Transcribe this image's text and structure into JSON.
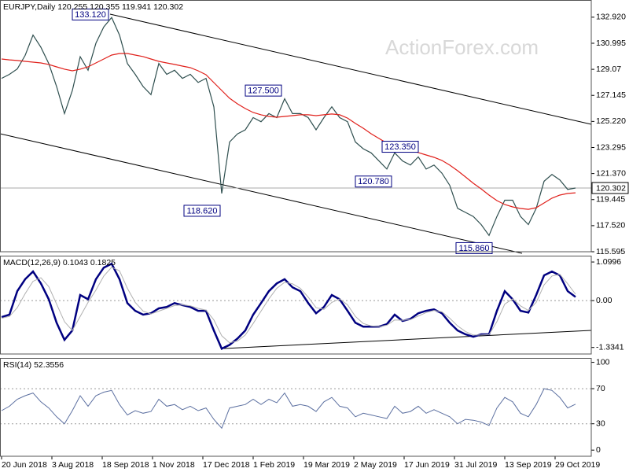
{
  "chart_data": [
    {
      "type": "line",
      "title": "EURJPY,Daily  120.255 120.355 119.941 120.302",
      "watermark": "ActionForex.com",
      "x": [
        0,
        5,
        10,
        15,
        20,
        25,
        30,
        35,
        40,
        45,
        50,
        55,
        60,
        65,
        70,
        75,
        80,
        85,
        90,
        95,
        100,
        105,
        110,
        115,
        120,
        125,
        130,
        135,
        140,
        145,
        150,
        155,
        160,
        165,
        170,
        175,
        180,
        185,
        190,
        195,
        200,
        205,
        210,
        215,
        220,
        225,
        230,
        235,
        240,
        245,
        250,
        255,
        260,
        265,
        270,
        275,
        280,
        285,
        290,
        295,
        300,
        305,
        310,
        315,
        320,
        325,
        330,
        335,
        340,
        345,
        350,
        355,
        360,
        365
      ],
      "xlim": [
        -1,
        375
      ],
      "ylim": [
        115.595,
        134.19
      ],
      "yticks": [
        {
          "value": 132.92,
          "label": "132.920"
        },
        130.995,
        129.07,
        127.145,
        {
          "value": 125.22,
          "label": "125.220"
        },
        123.295,
        {
          "value": 121.37,
          "label": "121.370"
        },
        119.445,
        {
          "value": 117.52,
          "label": "117.520"
        },
        115.595
      ],
      "series": [
        {
          "name": "Close",
          "color": "#2f4f4f",
          "values": [
            128.4,
            128.7,
            129.1,
            130.1,
            131.6,
            130.7,
            129.5,
            127.8,
            125.8,
            127.5,
            130.0,
            129.0,
            131.0,
            132.2,
            132.9,
            131.6,
            129.5,
            128.7,
            127.8,
            127.2,
            129.5,
            128.7,
            129.0,
            128.4,
            128.7,
            128.1,
            128.4,
            126.3,
            119.9,
            123.7,
            124.3,
            124.6,
            125.5,
            125.2,
            125.8,
            125.5,
            126.9,
            125.8,
            125.8,
            125.5,
            124.6,
            125.5,
            126.3,
            125.5,
            125.2,
            123.7,
            123.2,
            122.9,
            122.3,
            121.7,
            122.9,
            122.3,
            122.0,
            122.6,
            121.7,
            122.0,
            121.4,
            120.5,
            118.8,
            118.5,
            118.2,
            117.6,
            116.8,
            118.2,
            119.4,
            119.4,
            118.2,
            117.6,
            118.8,
            120.8,
            121.3,
            120.9,
            120.2,
            120.302
          ]
        },
        {
          "name": "MA",
          "color": "#e0201b",
          "values": [
            129.83,
            129.77,
            129.72,
            129.66,
            129.6,
            129.54,
            129.43,
            129.25,
            129.08,
            128.96,
            129.08,
            129.25,
            129.54,
            129.83,
            130.12,
            130.24,
            130.24,
            130.12,
            130.01,
            129.83,
            129.66,
            129.54,
            129.43,
            129.31,
            129.19,
            128.96,
            128.67,
            128.09,
            127.51,
            126.93,
            126.52,
            126.17,
            125.88,
            125.71,
            125.59,
            125.53,
            125.59,
            125.65,
            125.71,
            125.71,
            125.65,
            125.71,
            125.77,
            125.71,
            125.47,
            125.07,
            124.72,
            124.31,
            123.96,
            123.62,
            123.38,
            123.21,
            123.09,
            122.92,
            122.74,
            122.57,
            122.34,
            121.99,
            121.58,
            121.12,
            120.65,
            120.24,
            119.78,
            119.37,
            119.08,
            118.91,
            118.79,
            118.73,
            118.85,
            119.2,
            119.55,
            119.78,
            119.9,
            119.95
          ]
        }
      ],
      "annotations": [
        {
          "x": 69,
          "value": 133.12,
          "label": "133.120"
        },
        {
          "x": 179,
          "value": 127.5,
          "label": "127.500"
        },
        {
          "x": 266,
          "value": 123.35,
          "label": "123.350"
        },
        {
          "x": 249,
          "value": 120.78,
          "label": "120.780"
        },
        {
          "x": 140,
          "value": 118.62,
          "label": "118.620"
        },
        {
          "x": 313,
          "value": 115.86,
          "label": "115.860"
        }
      ],
      "current_price": 120.302
    },
    {
      "type": "line",
      "title": "MACD(12,26,9) 0.1043 0.1825",
      "x": [
        0,
        5,
        10,
        15,
        20,
        25,
        30,
        35,
        40,
        45,
        50,
        55,
        60,
        65,
        70,
        75,
        80,
        85,
        90,
        95,
        100,
        105,
        110,
        115,
        120,
        125,
        130,
        135,
        140,
        145,
        150,
        155,
        160,
        165,
        170,
        175,
        180,
        185,
        190,
        195,
        200,
        205,
        210,
        215,
        220,
        225,
        230,
        235,
        240,
        245,
        250,
        255,
        260,
        265,
        270,
        275,
        280,
        285,
        290,
        295,
        300,
        305,
        310,
        315,
        320,
        325,
        330,
        335,
        340,
        345,
        350,
        355,
        360,
        365
      ],
      "xlim": [
        -1,
        375
      ],
      "ylim": [
        -1.52,
        1.28
      ],
      "yticks": [
        1.0996,
        {
          "value": 0,
          "label": "0.00"
        },
        -1.3341
      ],
      "series": [
        {
          "name": "MACD",
          "color": "#000080",
          "values": [
            -0.47,
            -0.4,
            0.27,
            0.61,
            0.83,
            0.49,
            0.04,
            -0.63,
            -1.12,
            -0.85,
            0.16,
            0.04,
            0.61,
            0.94,
            1.05,
            0.61,
            -0.07,
            -0.29,
            -0.4,
            -0.36,
            -0.22,
            -0.18,
            -0.07,
            -0.13,
            -0.18,
            -0.29,
            -0.29,
            -0.85,
            -1.37,
            -1.26,
            -1.08,
            -0.85,
            -0.4,
            -0.07,
            0.27,
            0.49,
            0.61,
            0.38,
            0.27,
            -0.07,
            -0.36,
            -0.18,
            0.16,
            0.04,
            -0.29,
            -0.63,
            -0.74,
            -0.74,
            -0.74,
            -0.67,
            -0.4,
            -0.58,
            -0.52,
            -0.36,
            -0.29,
            -0.25,
            -0.36,
            -0.63,
            -0.85,
            -0.96,
            -1.03,
            -0.96,
            -0.96,
            -0.29,
            0.27,
            0.04,
            -0.29,
            -0.34,
            0.16,
            0.72,
            0.83,
            0.72,
            0.27,
            0.1043
          ]
        },
        {
          "name": "Signal",
          "color": "#b0b0b0",
          "values": [
            -0.5,
            -0.45,
            -0.2,
            0.2,
            0.55,
            0.65,
            0.4,
            -0.1,
            -0.6,
            -0.85,
            -0.45,
            -0.05,
            0.3,
            0.7,
            0.95,
            0.85,
            0.35,
            -0.05,
            -0.3,
            -0.38,
            -0.3,
            -0.22,
            -0.14,
            -0.12,
            -0.15,
            -0.22,
            -0.27,
            -0.55,
            -1.0,
            -1.2,
            -1.15,
            -0.98,
            -0.65,
            -0.3,
            0.05,
            0.35,
            0.52,
            0.48,
            0.35,
            0.1,
            -0.2,
            -0.25,
            -0.05,
            0.05,
            -0.12,
            -0.45,
            -0.65,
            -0.72,
            -0.74,
            -0.7,
            -0.55,
            -0.56,
            -0.54,
            -0.44,
            -0.34,
            -0.28,
            -0.32,
            -0.5,
            -0.72,
            -0.88,
            -0.98,
            -0.98,
            -0.97,
            -0.6,
            -0.1,
            0.05,
            -0.15,
            -0.28,
            -0.05,
            0.45,
            0.7,
            0.75,
            0.48,
            0.1825
          ]
        }
      ]
    },
    {
      "type": "line",
      "title": "RSI(14) 52.3556",
      "x": [
        0,
        5,
        10,
        15,
        20,
        25,
        30,
        35,
        40,
        45,
        50,
        55,
        60,
        65,
        70,
        75,
        80,
        85,
        90,
        95,
        100,
        105,
        110,
        115,
        120,
        125,
        130,
        135,
        140,
        145,
        150,
        155,
        160,
        165,
        170,
        175,
        180,
        185,
        190,
        195,
        200,
        205,
        210,
        215,
        220,
        225,
        230,
        235,
        240,
        245,
        250,
        255,
        260,
        265,
        270,
        275,
        280,
        285,
        290,
        295,
        300,
        305,
        310,
        315,
        320,
        325,
        330,
        335,
        340,
        345,
        350,
        355,
        360,
        365
      ],
      "xlim": [
        -1,
        375
      ],
      "ylim": [
        -7,
        105
      ],
      "yticks": [
        100,
        70,
        30,
        0
      ],
      "levels": [
        70,
        30
      ],
      "xticks": [
        {
          "value": 0,
          "label": "20 Jun 2018"
        },
        {
          "value": 32,
          "label": "3 Aug 2018"
        },
        {
          "value": 64,
          "label": "18 Sep 2018"
        },
        {
          "value": 96,
          "label": "1 Nov 2018"
        },
        {
          "value": 128,
          "label": "17 Dec 2018"
        },
        {
          "value": 160,
          "label": "1 Feb 2019"
        },
        {
          "value": 192,
          "label": "19 Mar 2019"
        },
        {
          "value": 224,
          "label": "2 May 2019"
        },
        {
          "value": 256,
          "label": "17 Jun 2019"
        },
        {
          "value": 288,
          "label": "31 Jul 2019"
        },
        {
          "value": 320,
          "label": "13 Sep 2019"
        },
        {
          "value": 352,
          "label": "29 Oct 2019"
        }
      ],
      "series": [
        {
          "name": "RSI",
          "color": "#5b6fa0",
          "values": [
            45,
            50,
            58,
            62,
            65,
            55,
            48,
            38,
            30,
            45,
            62,
            50,
            62,
            66,
            68,
            52,
            40,
            45,
            42,
            44,
            58,
            50,
            52,
            46,
            50,
            45,
            48,
            35,
            25,
            48,
            50,
            52,
            58,
            52,
            58,
            54,
            65,
            50,
            52,
            50,
            44,
            55,
            60,
            50,
            48,
            38,
            42,
            40,
            38,
            36,
            50,
            42,
            44,
            50,
            42,
            46,
            42,
            38,
            30,
            35,
            34,
            32,
            28,
            48,
            60,
            55,
            42,
            38,
            52,
            70,
            68,
            60,
            48,
            52.36
          ]
        }
      ]
    }
  ]
}
